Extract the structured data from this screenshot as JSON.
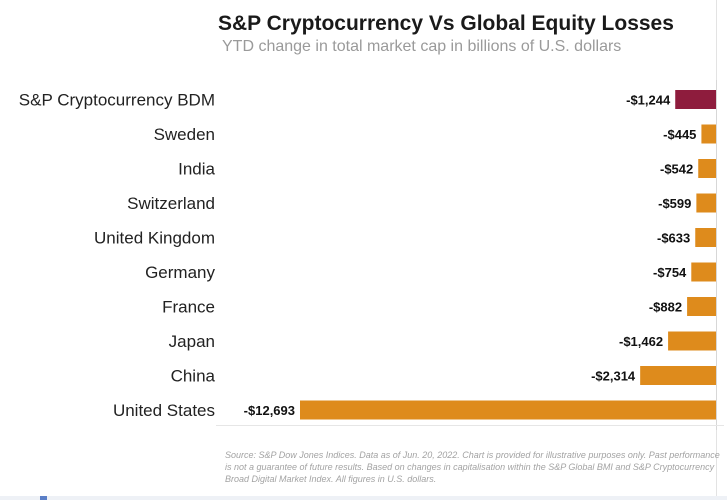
{
  "chart_data": {
    "type": "bar",
    "orientation": "horizontal",
    "title": "S&P Cryptocurrency Vs Global Equity Losses",
    "subtitle": "YTD change in total market cap in billions of U.S. dollars",
    "categories": [
      "S&P Cryptocurrency BDM",
      "Sweden",
      "India",
      "Switzerland",
      "United Kingdom",
      "Germany",
      "France",
      "Japan",
      "China",
      "United States"
    ],
    "values": [
      -1244,
      -445,
      -542,
      -599,
      -633,
      -754,
      -882,
      -1462,
      -2314,
      -12693
    ],
    "data_labels": [
      "-$1,244",
      "-$445",
      "-$542",
      "-$599",
      "-$633",
      "-$754",
      "-$882",
      "-$1,462",
      "-$2,314",
      "-$12,693"
    ],
    "xlim": [
      -12693,
      0
    ],
    "xlabel": "",
    "ylabel": "",
    "colors": {
      "highlight": "#8e1c3d",
      "default": "#de8b1c"
    },
    "highlight_index": 0,
    "source": "Source: S&P Dow Jones Indices. Data as of Jun. 20, 2022. Chart is provided for illustrative purposes only. Past performance is not a guarantee of future results. Based on changes in capitalisation within the S&P Global BMI and S&P Cryptocurrency Broad Digital Market Index. All figures in U.S. dollars."
  }
}
